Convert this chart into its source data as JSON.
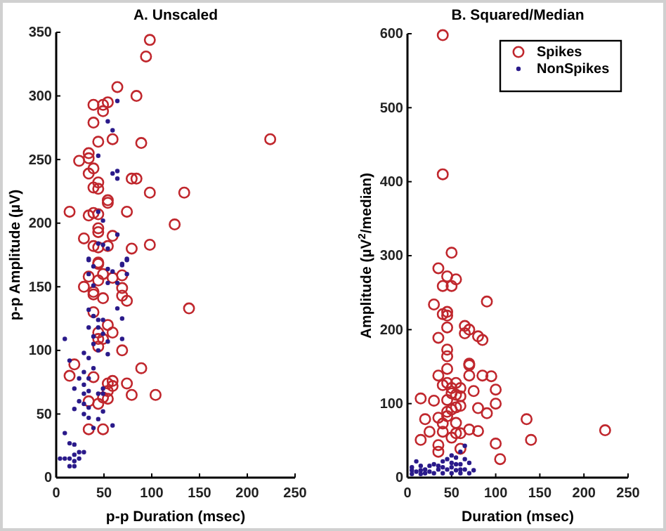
{
  "chart_data": [
    {
      "type": "scatter",
      "title": "A. Unscaled",
      "xlabel": "p-p Duration (msec)",
      "ylabel": "p-p Amplitude (µV)",
      "xlim": [
        0,
        250
      ],
      "xticks": [
        0,
        50,
        100,
        150,
        200,
        250
      ],
      "ylim": [
        0,
        350
      ],
      "yticks": [
        0,
        50,
        100,
        150,
        200,
        250,
        300,
        350
      ],
      "grid": false,
      "legend": false,
      "marker": "circle",
      "series": [
        {
          "color": "#c0272d",
          "x": [
            98,
            94,
            64,
            84,
            39,
            49,
            54,
            49,
            39,
            44,
            59,
            89,
            224,
            34,
            34,
            24,
            39,
            34,
            44,
            39,
            44,
            54,
            54,
            79,
            84,
            98,
            134,
            14,
            34,
            39,
            44,
            74,
            44,
            44,
            59,
            124,
            29,
            39,
            44,
            54,
            98,
            79,
            44,
            44,
            34,
            49,
            44,
            59,
            69,
            29,
            39,
            39,
            49,
            69,
            69,
            74,
            139,
            39,
            54,
            59,
            44,
            44,
            49,
            44,
            69,
            19,
            14,
            39,
            89,
            59,
            54,
            59,
            74,
            54,
            79,
            104,
            34,
            44,
            49,
            54,
            34,
            49
          ],
          "values": [
            344,
            331,
            307,
            300,
            293,
            293,
            295,
            288,
            279,
            264,
            266,
            263,
            266,
            255,
            251,
            249,
            243,
            239,
            232,
            228,
            227,
            218,
            216,
            235,
            235,
            224,
            224,
            209,
            206,
            208,
            207,
            209,
            196,
            193,
            190,
            199,
            188,
            182,
            181,
            182,
            183,
            180,
            169,
            168,
            158,
            160,
            155,
            157,
            159,
            150,
            146,
            144,
            141,
            149,
            143,
            139,
            133,
            130,
            120,
            114,
            114,
            109,
            109,
            103,
            100,
            89,
            80,
            79,
            86,
            76,
            74,
            72,
            74,
            68,
            65,
            65,
            60,
            58,
            63,
            62,
            38,
            38
          ]
        },
        {
          "color": "#2a1a8a",
          "x": [
            64,
            54,
            59,
            44,
            59,
            64,
            64,
            49,
            44,
            64,
            49,
            44,
            54,
            34,
            74,
            69,
            34,
            74,
            69,
            39,
            54,
            34,
            59,
            74,
            54,
            64,
            39,
            64,
            34,
            39,
            44,
            49,
            69,
            44,
            34,
            49,
            39,
            69,
            9,
            54,
            39,
            44,
            54,
            29,
            14,
            34,
            29,
            39,
            24,
            34,
            29,
            19,
            49,
            34,
            29,
            44,
            49,
            24,
            29,
            34,
            19,
            49,
            29,
            34,
            44,
            59,
            39,
            9,
            14,
            19,
            24,
            29,
            4,
            9,
            14,
            19,
            19,
            14,
            19,
            24
          ],
          "values": [
            296,
            280,
            273,
            253,
            239,
            241,
            235,
            202,
            209,
            191,
            183,
            184,
            180,
            172,
            172,
            168,
            171,
            171,
            167,
            166,
            164,
            160,
            162,
            160,
            153,
            153,
            151,
            133,
            132,
            127,
            124,
            124,
            125,
            118,
            118,
            113,
            111,
            109,
            109,
            107,
            105,
            100,
            97,
            98,
            92,
            94,
            83,
            86,
            78,
            78,
            73,
            70,
            70,
            68,
            66,
            66,
            66,
            60,
            58,
            55,
            54,
            52,
            50,
            47,
            46,
            41,
            39,
            35,
            27,
            26,
            20,
            20,
            15,
            15,
            15,
            18,
            13,
            9,
            9,
            15
          ]
        }
      ]
    },
    {
      "type": "scatter",
      "title": "B. Squared/Median",
      "xlabel": "Duration (msec)",
      "ylabel": "Amplitude (µV$^{2}$/median)",
      "xlim": [
        0,
        250
      ],
      "xticks": [
        0,
        50,
        100,
        150,
        200,
        250
      ],
      "ylim": [
        0,
        600
      ],
      "yticks": [
        0,
        100,
        200,
        300,
        400,
        500,
        600
      ],
      "grid": false,
      "legend": "top right",
      "marker": "circle",
      "series": [
        {
          "name": "Spikes",
          "color": "#c0272d",
          "x": [
            40,
            40,
            50,
            35,
            45,
            55,
            40,
            50,
            30,
            90,
            40,
            45,
            45,
            45,
            65,
            70,
            65,
            80,
            85,
            35,
            45,
            45,
            45,
            70,
            70,
            35,
            70,
            85,
            95,
            45,
            55,
            40,
            50,
            60,
            75,
            100,
            50,
            55,
            60,
            45,
            15,
            30,
            100,
            80,
            55,
            60,
            45,
            50,
            90,
            45,
            35,
            20,
            135,
            40,
            55,
            70,
            80,
            25,
            40,
            55,
            60,
            50,
            15,
            140,
            100,
            35,
            60,
            35,
            105,
            224
          ],
          "values": [
            598,
            410,
            304,
            283,
            272,
            268,
            259,
            259,
            234,
            238,
            221,
            224,
            219,
            203,
            205,
            200,
            195,
            191,
            186,
            189,
            173,
            164,
            147,
            154,
            152,
            138,
            138,
            138,
            137,
            128,
            128,
            125,
            121,
            121,
            117,
            119,
            114,
            112,
            110,
            105,
            107,
            104,
            100,
            94,
            95,
            97,
            89,
            92,
            87,
            83,
            81,
            79,
            79,
            73,
            74,
            65,
            63,
            62,
            62,
            60,
            60,
            54,
            51,
            51,
            46,
            44,
            39,
            35,
            25,
            64
          ]
        },
        {
          "name": "NonSpikes",
          "color": "#2a1a8a",
          "x": [
            65,
            60,
            50,
            45,
            40,
            55,
            65,
            10,
            15,
            25,
            30,
            35,
            40,
            50,
            70,
            60,
            5,
            5,
            10,
            20,
            25,
            35,
            45,
            55,
            65,
            75,
            5,
            15,
            30,
            40,
            50,
            60,
            70,
            15,
            20,
            55,
            50,
            60
          ],
          "values": [
            43,
            35,
            30,
            25,
            22,
            27,
            25,
            22,
            16,
            16,
            18,
            16,
            14,
            20,
            20,
            18,
            14,
            10,
            8,
            11,
            8,
            11,
            11,
            10,
            11,
            10,
            5,
            5,
            6,
            6,
            6,
            6,
            6,
            10,
            6,
            18,
            14,
            11
          ]
        }
      ]
    }
  ]
}
